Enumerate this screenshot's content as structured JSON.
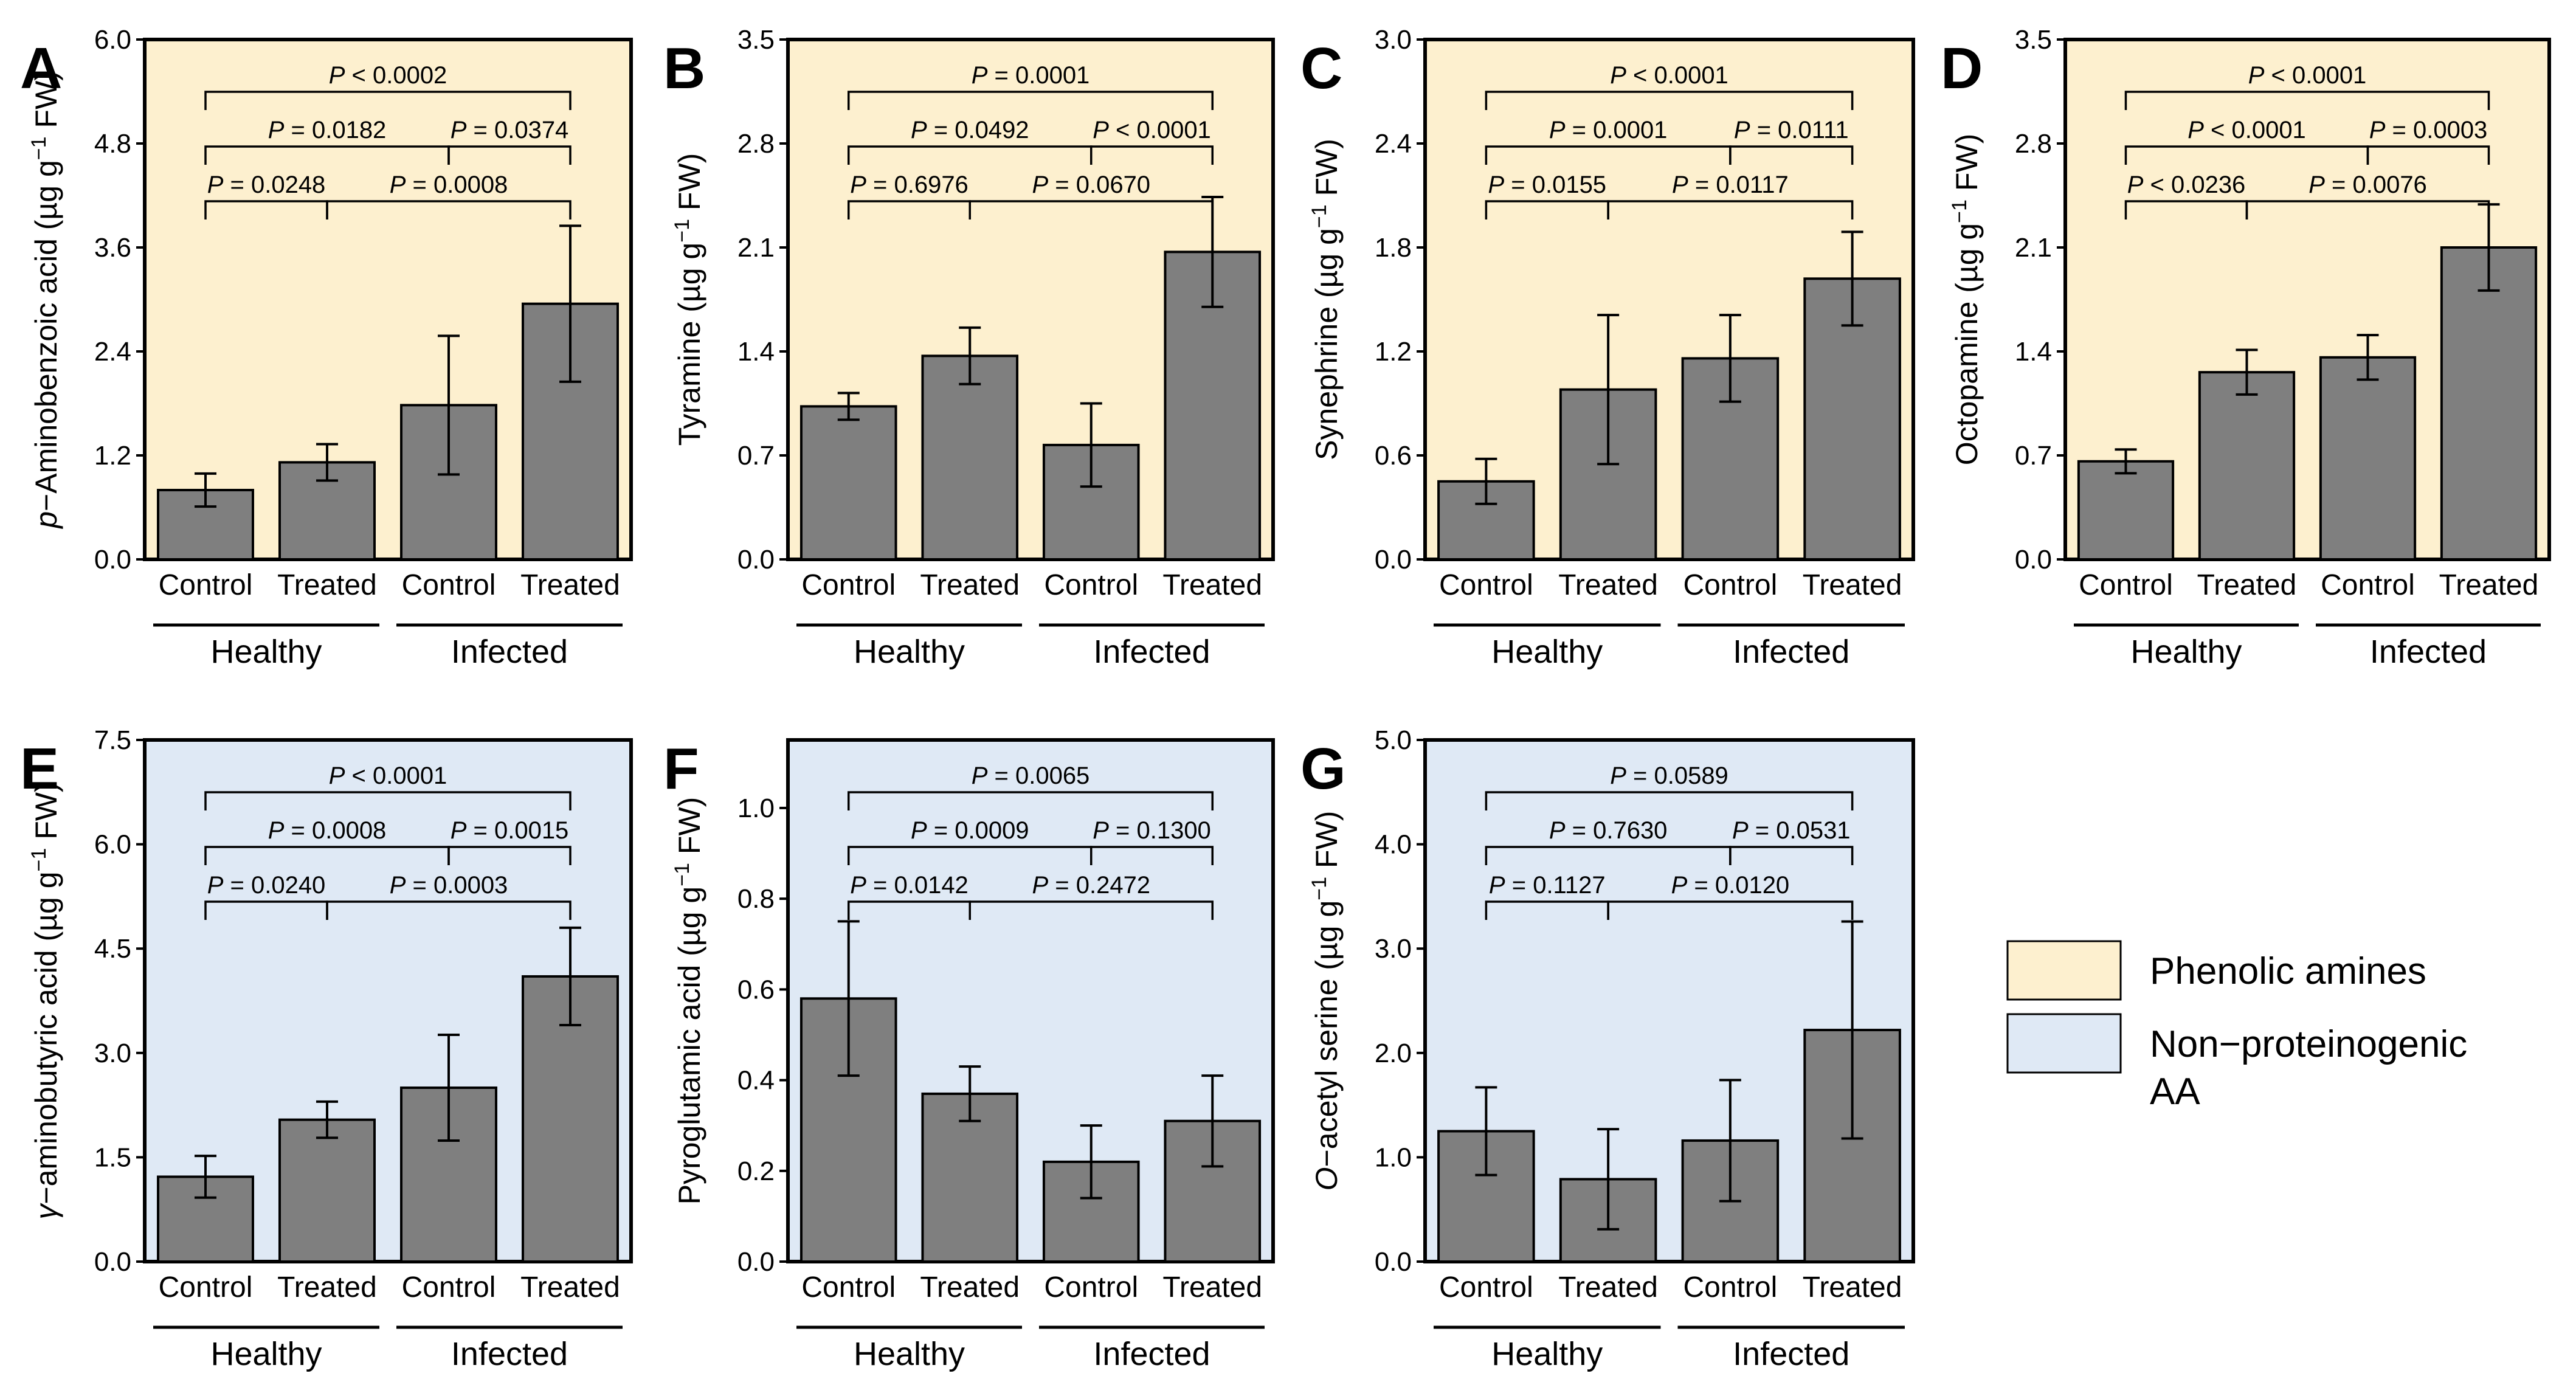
{
  "colors": {
    "phenolic_bg": "#fdf0cf",
    "nonprot_bg": "#dfe9f5",
    "bar_fill": "#7f7f7f",
    "stroke": "#000000"
  },
  "legend": {
    "phenolic": "Phenolic amines",
    "nonprot_line1": "Non−proteinogenic",
    "nonprot_line2": "AA"
  },
  "chart_data": [
    {
      "id": "A",
      "type": "bar",
      "group": "phenolic",
      "ylabel_prefix": "p",
      "ylabel_rest": "−Aminobenzoic acid (µg g",
      "ylabel_sup": "−1",
      "ylabel_end": " FW)",
      "ylim": [
        0,
        6.0
      ],
      "yticks": [
        "0.0",
        "1.2",
        "2.4",
        "3.6",
        "4.8",
        "6.0"
      ],
      "categories": [
        "Control",
        "Treated",
        "Control",
        "Treated"
      ],
      "groups": [
        "Healthy",
        "Infected"
      ],
      "values": [
        0.8,
        1.12,
        1.78,
        2.95
      ],
      "errors": [
        0.19,
        0.21,
        0.8,
        0.9
      ],
      "comparisons": [
        {
          "label": "P < 0.0002",
          "from": 0,
          "to": 3,
          "level": 1
        },
        {
          "label": "P = 0.0182",
          "from": 0,
          "to": 2,
          "level": 2
        },
        {
          "label": "P = 0.0374",
          "from": 2,
          "to": 3,
          "level": 2
        },
        {
          "label": "P = 0.0248",
          "from": 0,
          "to": 1,
          "level": 3
        },
        {
          "label": "P = 0.0008",
          "from": 1,
          "to": 3,
          "level": 3
        }
      ]
    },
    {
      "id": "B",
      "type": "bar",
      "group": "phenolic",
      "ylabel_prefix": "",
      "ylabel_rest": "Tyramine (µg g",
      "ylabel_sup": "−1",
      "ylabel_end": " FW)",
      "ylim": [
        0,
        3.5
      ],
      "yticks": [
        "0.0",
        "0.7",
        "1.4",
        "2.1",
        "2.8",
        "3.5"
      ],
      "categories": [
        "Control",
        "Treated",
        "Control",
        "Treated"
      ],
      "groups": [
        "Healthy",
        "Infected"
      ],
      "values": [
        1.03,
        1.37,
        0.77,
        2.07
      ],
      "errors": [
        0.09,
        0.19,
        0.28,
        0.37
      ],
      "comparisons": [
        {
          "label": "P = 0.0001",
          "from": 0,
          "to": 3,
          "level": 1
        },
        {
          "label": "P = 0.0492",
          "from": 0,
          "to": 2,
          "level": 2
        },
        {
          "label": "P < 0.0001",
          "from": 2,
          "to": 3,
          "level": 2
        },
        {
          "label": "P = 0.6976",
          "from": 0,
          "to": 1,
          "level": 3
        },
        {
          "label": "P = 0.0670",
          "from": 1,
          "to": 3,
          "level": 3
        }
      ]
    },
    {
      "id": "C",
      "type": "bar",
      "group": "phenolic",
      "ylabel_prefix": "",
      "ylabel_rest": "Synephrine (µg g",
      "ylabel_sup": "−1",
      "ylabel_end": " FW)",
      "ylim": [
        0,
        3.0
      ],
      "yticks": [
        "0.0",
        "0.6",
        "1.2",
        "1.8",
        "2.4",
        "3.0"
      ],
      "categories": [
        "Control",
        "Treated",
        "Control",
        "Treated"
      ],
      "groups": [
        "Healthy",
        "Infected"
      ],
      "values": [
        0.45,
        0.98,
        1.16,
        1.62
      ],
      "errors": [
        0.13,
        0.43,
        0.25,
        0.27
      ],
      "comparisons": [
        {
          "label": "P < 0.0001",
          "from": 0,
          "to": 3,
          "level": 1
        },
        {
          "label": "P = 0.0001",
          "from": 0,
          "to": 2,
          "level": 2
        },
        {
          "label": "P = 0.0111",
          "from": 2,
          "to": 3,
          "level": 2
        },
        {
          "label": "P = 0.0155",
          "from": 0,
          "to": 1,
          "level": 3
        },
        {
          "label": "P = 0.0117",
          "from": 1,
          "to": 3,
          "level": 3
        }
      ]
    },
    {
      "id": "D",
      "type": "bar",
      "group": "phenolic",
      "ylabel_prefix": "",
      "ylabel_rest": "Octopamine (µg g",
      "ylabel_sup": "−1",
      "ylabel_end": " FW)",
      "ylim": [
        0,
        3.5
      ],
      "yticks": [
        "0.0",
        "0.7",
        "1.4",
        "2.1",
        "2.8",
        "3.5"
      ],
      "categories": [
        "Control",
        "Treated",
        "Control",
        "Treated"
      ],
      "groups": [
        "Healthy",
        "Infected"
      ],
      "values": [
        0.66,
        1.26,
        1.36,
        2.1
      ],
      "errors": [
        0.08,
        0.15,
        0.15,
        0.29
      ],
      "comparisons": [
        {
          "label": "P < 0.0001",
          "from": 0,
          "to": 3,
          "level": 1
        },
        {
          "label": "P < 0.0001",
          "from": 0,
          "to": 2,
          "level": 2
        },
        {
          "label": "P = 0.0003",
          "from": 2,
          "to": 3,
          "level": 2
        },
        {
          "label": "P < 0.0236",
          "from": 0,
          "to": 1,
          "level": 3
        },
        {
          "label": "P = 0.0076",
          "from": 1,
          "to": 3,
          "level": 3
        }
      ]
    },
    {
      "id": "E",
      "type": "bar",
      "group": "nonprot",
      "ylabel_prefix": "γ",
      "ylabel_rest": "−aminobutyric acid (µg g",
      "ylabel_sup": "−1",
      "ylabel_end": " FW)",
      "ylim": [
        0,
        7.5
      ],
      "yticks": [
        "0.0",
        "1.5",
        "3.0",
        "4.5",
        "6.0",
        "7.5"
      ],
      "categories": [
        "Control",
        "Treated",
        "Control",
        "Treated"
      ],
      "groups": [
        "Healthy",
        "Infected"
      ],
      "values": [
        1.22,
        2.04,
        2.5,
        4.1
      ],
      "errors": [
        0.3,
        0.26,
        0.76,
        0.7
      ],
      "comparisons": [
        {
          "label": "P < 0.0001",
          "from": 0,
          "to": 3,
          "level": 1
        },
        {
          "label": "P = 0.0008",
          "from": 0,
          "to": 2,
          "level": 2
        },
        {
          "label": "P = 0.0015",
          "from": 2,
          "to": 3,
          "level": 2
        },
        {
          "label": "P = 0.0240",
          "from": 0,
          "to": 1,
          "level": 3
        },
        {
          "label": "P = 0.0003",
          "from": 1,
          "to": 3,
          "level": 3
        }
      ]
    },
    {
      "id": "F",
      "type": "bar",
      "group": "nonprot",
      "ylabel_prefix": "",
      "ylabel_rest": "Pyroglutamic acid (µg g",
      "ylabel_sup": "−1",
      "ylabel_end": " FW)",
      "ylim": [
        0,
        1.15
      ],
      "yticks": [
        "0.0",
        "0.2",
        "0.4",
        "0.6",
        "0.8",
        "1.0"
      ],
      "tickvals": [
        0,
        0.2,
        0.4,
        0.6,
        0.8,
        1.0
      ],
      "categories": [
        "Control",
        "Treated",
        "Control",
        "Treated"
      ],
      "groups": [
        "Healthy",
        "Infected"
      ],
      "values": [
        0.58,
        0.37,
        0.22,
        0.31
      ],
      "errors": [
        0.17,
        0.06,
        0.08,
        0.1
      ],
      "comparisons": [
        {
          "label": "P = 0.0065",
          "from": 0,
          "to": 3,
          "level": 1
        },
        {
          "label": "P = 0.0009",
          "from": 0,
          "to": 2,
          "level": 2
        },
        {
          "label": "P = 0.1300",
          "from": 2,
          "to": 3,
          "level": 2
        },
        {
          "label": "P = 0.0142",
          "from": 0,
          "to": 1,
          "level": 3
        },
        {
          "label": "P = 0.2472",
          "from": 1,
          "to": 3,
          "level": 3
        }
      ]
    },
    {
      "id": "G",
      "type": "bar",
      "group": "nonprot",
      "ylabel_prefix": "O",
      "ylabel_rest": "−acetyl serine (µg g",
      "ylabel_sup": "−1",
      "ylabel_end": " FW)",
      "ylim": [
        0,
        5.0
      ],
      "yticks": [
        "0.0",
        "1.0",
        "2.0",
        "3.0",
        "4.0",
        "5.0"
      ],
      "categories": [
        "Control",
        "Treated",
        "Control",
        "Treated"
      ],
      "groups": [
        "Healthy",
        "Infected"
      ],
      "values": [
        1.25,
        0.79,
        1.16,
        2.22
      ],
      "errors": [
        0.42,
        0.48,
        0.58,
        1.04
      ],
      "comparisons": [
        {
          "label": "P = 0.0589",
          "from": 0,
          "to": 3,
          "level": 1
        },
        {
          "label": "P = 0.7630",
          "from": 0,
          "to": 2,
          "level": 2
        },
        {
          "label": "P = 0.0531",
          "from": 2,
          "to": 3,
          "level": 2
        },
        {
          "label": "P = 0.1127",
          "from": 0,
          "to": 1,
          "level": 3
        },
        {
          "label": "P = 0.0120",
          "from": 1,
          "to": 3,
          "level": 3
        }
      ]
    }
  ]
}
